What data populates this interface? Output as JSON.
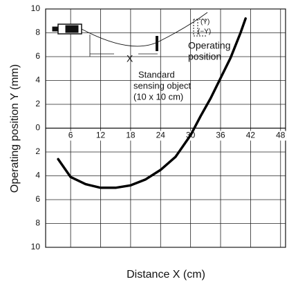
{
  "chart_data": {
    "type": "line",
    "x_label": "Distance X (cm)",
    "y_label": "Operating position Y  (mm)",
    "x": [
      3.5,
      6,
      9,
      12,
      15,
      18,
      21,
      24,
      27,
      30,
      32,
      34,
      36,
      38,
      40,
      41
    ],
    "series": [
      {
        "color": "#000000",
        "values": [
          -2.6,
          -4.1,
          -4.7,
          -5,
          -5,
          -4.8,
          -4.3,
          -3.5,
          -2.4,
          -0.6,
          1,
          2.5,
          4.2,
          5.9,
          8,
          9.2
        ]
      }
    ],
    "xlim": [
      1,
      49
    ],
    "xticks": [
      6,
      12,
      18,
      24,
      30,
      36,
      42,
      48
    ],
    "ylim": [
      -10,
      10
    ],
    "yticks": [
      {
        "value": -10,
        "label": "10"
      },
      {
        "value": -8,
        "label": "8"
      },
      {
        "value": -6,
        "label": "6"
      },
      {
        "value": -4,
        "label": "4"
      },
      {
        "value": -2,
        "label": "2"
      },
      0,
      2,
      4,
      6,
      8,
      10
    ],
    "grid": true,
    "annotations": [
      {
        "text": "(Y)"
      },
      {
        "text": "(−Y)"
      },
      {
        "text": "Operating"
      },
      {
        "text": "position"
      },
      {
        "text": "X"
      },
      {
        "text": "Standard"
      },
      {
        "text": "sensing object"
      },
      {
        "text": "(10 x 10 cm)"
      }
    ]
  }
}
